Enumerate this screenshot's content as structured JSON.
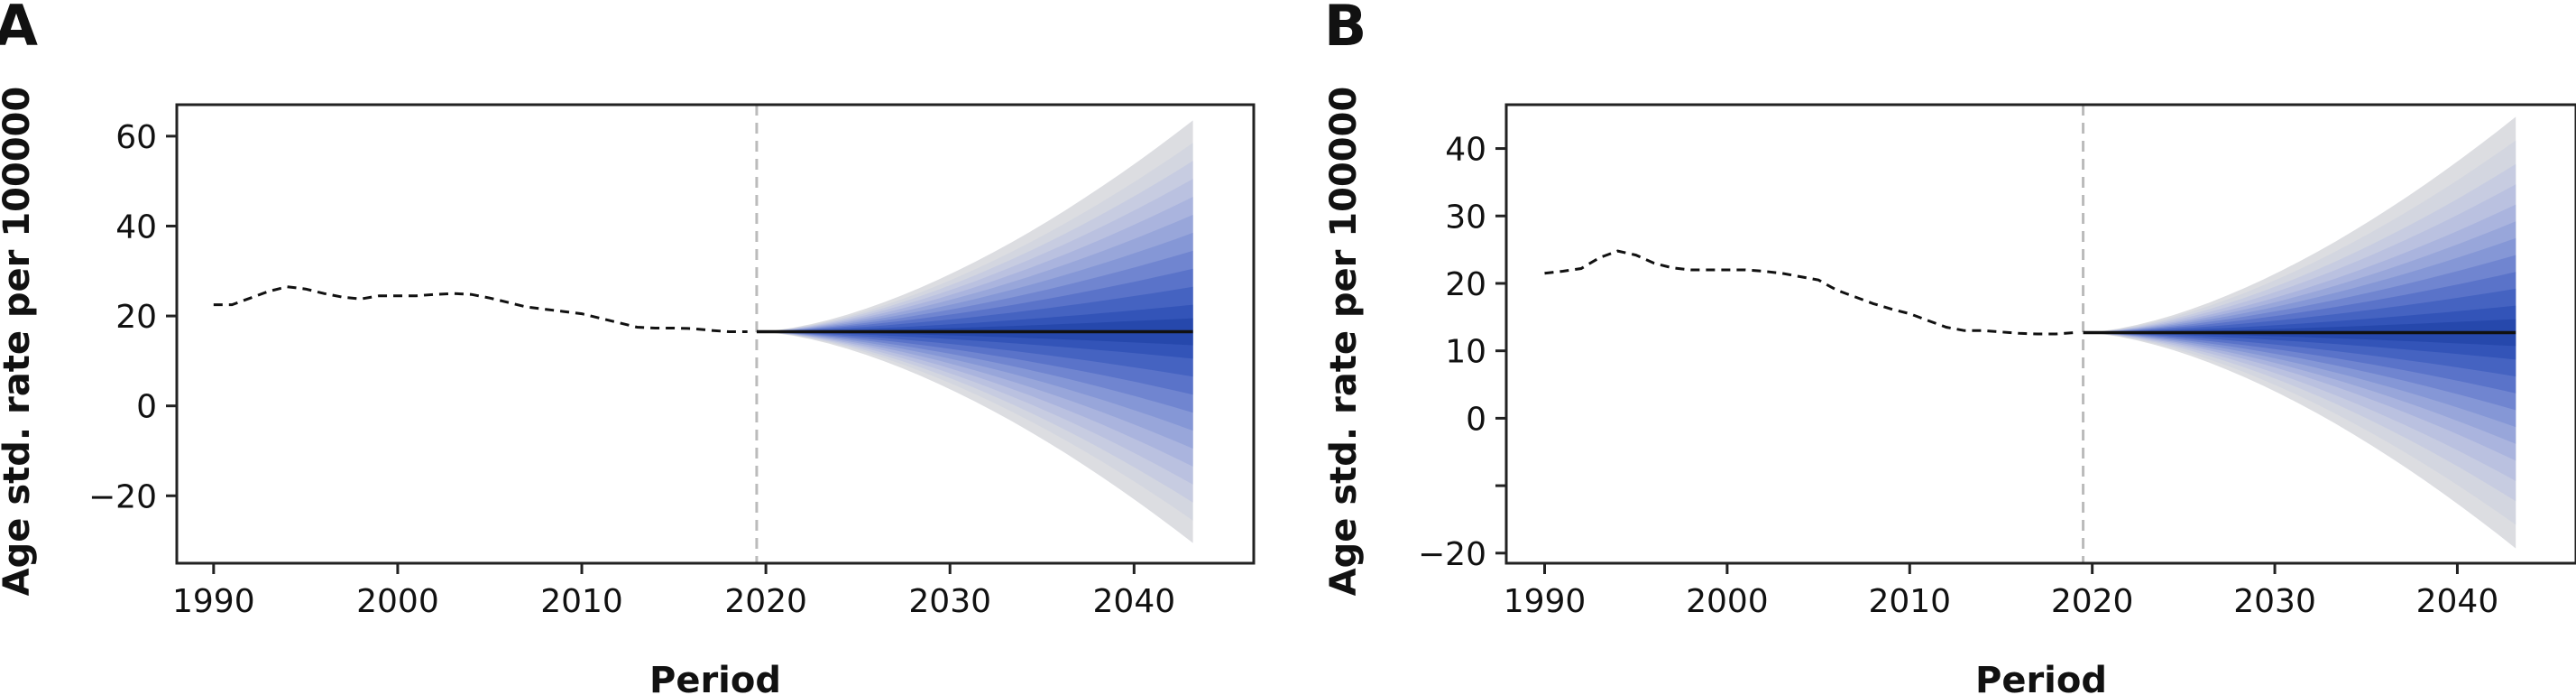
{
  "chart_data": [
    {
      "type": "area",
      "panel_label": "A",
      "xlabel": "Period",
      "ylabel": "Age std. rate per 100000",
      "xlim": [
        1988,
        2046.5
      ],
      "ylim": [
        -35,
        67
      ],
      "x_ticks": [
        1990,
        2000,
        2010,
        2020,
        2030,
        2040
      ],
      "y_ticks": [
        -20,
        0,
        20,
        40,
        60
      ],
      "y_tick_labels": [
        "−20",
        "0",
        "20",
        "40",
        "60"
      ],
      "forecast_start": 2019.5,
      "vertical_line_x": 2019.5,
      "historical": {
        "x": [
          1990,
          1991,
          1992,
          1993,
          1994,
          1995,
          1996,
          1997,
          1998,
          1999,
          2000,
          2001,
          2002,
          2003,
          2004,
          2005,
          2006,
          2007,
          2008,
          2009,
          2010,
          2011,
          2012,
          2013,
          2014,
          2015,
          2016,
          2017,
          2018,
          2019
        ],
        "y": [
          22.5,
          22.5,
          24,
          25.5,
          26.5,
          26,
          25,
          24.2,
          23.8,
          24.5,
          24.5,
          24.5,
          24.8,
          25,
          24.8,
          24,
          23,
          22,
          21.5,
          21,
          20.5,
          19.5,
          18.5,
          17.5,
          17.3,
          17.3,
          17.2,
          16.8,
          16.5,
          16.5
        ]
      },
      "forecast": {
        "x_start": 2019.5,
        "x_end": 2043.2,
        "y": 16.5
      },
      "fan_half_width_at_end": [
        47,
        42,
        38,
        34,
        30,
        26,
        22,
        18,
        14,
        10,
        6,
        3
      ],
      "fan_colors": [
        "#dcdde1",
        "#d3d6e0",
        "#c7cce1",
        "#bac1e0",
        "#aab4de",
        "#98a6da",
        "#8597d6",
        "#7085d0",
        "#5a73c9",
        "#4563c1",
        "#3354b8",
        "#2648ac"
      ]
    },
    {
      "type": "area",
      "panel_label": "B",
      "xlabel": "Period",
      "ylabel": "Age std. rate per 100000",
      "xlim": [
        1987.9,
        2046.5
      ],
      "ylim": [
        -21.5,
        46.5
      ],
      "x_ticks": [
        1990,
        2000,
        2010,
        2020,
        2030,
        2040
      ],
      "y_ticks": [
        -20,
        -10,
        0,
        10,
        20,
        30,
        40
      ],
      "y_tick_labels": [
        "−20",
        "",
        "0",
        "10",
        "20",
        "30",
        "40"
      ],
      "forecast_start": 2019.5,
      "vertical_line_x": 2019.5,
      "historical": {
        "x": [
          1990,
          1991,
          1992,
          1993,
          1994,
          1995,
          1996,
          1997,
          1998,
          1999,
          2000,
          2001,
          2002,
          2003,
          2004,
          2005,
          2006,
          2007,
          2008,
          2009,
          2010,
          2011,
          2012,
          2013,
          2014,
          2015,
          2016,
          2017,
          2018,
          2019
        ],
        "y": [
          21.5,
          21.8,
          22.2,
          23.8,
          24.8,
          24.2,
          23,
          22.3,
          22,
          22,
          22,
          22,
          21.8,
          21.5,
          21,
          20.5,
          19,
          18,
          17,
          16.2,
          15.5,
          14.5,
          13.5,
          13,
          13,
          12.8,
          12.6,
          12.5,
          12.5,
          12.7
        ]
      },
      "forecast": {
        "x_start": 2019.5,
        "x_end": 2043.2,
        "y": 12.7
      },
      "fan_half_width_at_end": [
        32,
        28.5,
        25,
        22,
        19,
        16.5,
        14,
        11.5,
        9,
        6.5,
        4,
        2
      ],
      "fan_colors": [
        "#dcdde1",
        "#d3d6e0",
        "#c7cce1",
        "#bac1e0",
        "#aab4de",
        "#98a6da",
        "#8597d6",
        "#7085d0",
        "#5a73c9",
        "#4563c1",
        "#3354b8",
        "#2648ac"
      ]
    }
  ]
}
